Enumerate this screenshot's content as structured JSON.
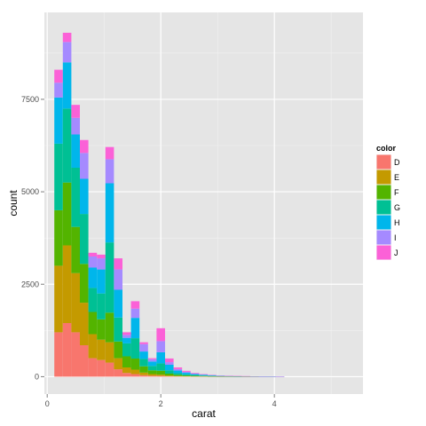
{
  "chart_data": {
    "type": "bar",
    "stacked": true,
    "x": [
      0.2,
      0.35,
      0.5,
      0.65,
      0.8,
      0.95,
      1.1,
      1.25,
      1.4,
      1.55,
      1.7,
      1.85,
      2.0,
      2.15,
      2.3,
      2.45,
      2.6,
      2.75,
      2.9,
      3.05,
      3.2,
      3.35,
      3.5,
      3.65,
      3.8,
      3.95,
      4.1,
      4.25,
      4.4,
      4.55,
      4.7,
      4.85,
      5.0
    ],
    "bin_width": 0.15,
    "series": [
      {
        "name": "D",
        "values": [
          1200,
          1450,
          1200,
          850,
          500,
          450,
          380,
          200,
          100,
          70,
          40,
          25,
          20,
          12,
          8,
          5,
          4,
          3,
          2,
          1,
          1,
          1,
          1,
          0,
          0,
          0,
          0,
          0,
          0,
          0,
          0,
          0,
          0
        ]
      },
      {
        "name": "E",
        "values": [
          1800,
          2100,
          1600,
          1150,
          650,
          550,
          550,
          300,
          150,
          120,
          70,
          45,
          35,
          20,
          12,
          8,
          6,
          5,
          3,
          2,
          2,
          1,
          1,
          0,
          0,
          0,
          0,
          0,
          0,
          0,
          0,
          0,
          0
        ]
      },
      {
        "name": "F",
        "values": [
          1500,
          1700,
          1250,
          1050,
          600,
          550,
          800,
          450,
          300,
          300,
          170,
          100,
          105,
          50,
          30,
          20,
          14,
          9,
          5,
          3,
          2,
          1,
          1,
          1,
          0,
          0,
          0,
          0,
          0,
          0,
          0,
          0,
          0
        ]
      },
      {
        "name": "G",
        "values": [
          1800,
          2000,
          1600,
          1350,
          650,
          700,
          1900,
          650,
          350,
          550,
          200,
          120,
          200,
          90,
          45,
          30,
          20,
          14,
          10,
          6,
          4,
          3,
          2,
          1,
          1,
          1,
          0,
          0,
          0,
          0,
          0,
          0,
          0
        ]
      },
      {
        "name": "H",
        "values": [
          1250,
          1250,
          900,
          950,
          550,
          650,
          1600,
          750,
          150,
          550,
          200,
          120,
          300,
          150,
          70,
          45,
          25,
          18,
          12,
          8,
          6,
          4,
          3,
          2,
          1,
          1,
          1,
          0,
          0,
          0,
          0,
          0,
          0
        ]
      },
      {
        "name": "I",
        "values": [
          400,
          550,
          450,
          700,
          300,
          300,
          650,
          550,
          80,
          250,
          200,
          60,
          300,
          70,
          40,
          25,
          18,
          12,
          10,
          8,
          6,
          5,
          4,
          3,
          2,
          3,
          1,
          0,
          0,
          0,
          0,
          0,
          0
        ]
      },
      {
        "name": "J",
        "values": [
          350,
          250,
          350,
          350,
          100,
          100,
          330,
          300,
          70,
          200,
          50,
          30,
          350,
          100,
          45,
          25,
          15,
          10,
          8,
          6,
          4,
          3,
          2,
          2,
          1,
          1,
          1,
          0,
          0,
          0,
          0,
          0,
          0
        ]
      }
    ],
    "colors": [
      "#F8766D",
      "#C49A00",
      "#53B400",
      "#00C094",
      "#00B6EB",
      "#A58AFF",
      "#FB61D7"
    ],
    "xlabel": "carat",
    "ylabel": "count",
    "xlim": [
      -0.05,
      5.56
    ],
    "ylim": [
      -470,
      9850
    ],
    "x_ticks": [
      0,
      2,
      4
    ],
    "x_tick_labels": [
      "0",
      "2",
      "4"
    ],
    "y_ticks": [
      0,
      2500,
      5000,
      7500
    ],
    "y_tick_labels": [
      "0",
      "2500",
      "5000",
      "7500"
    ],
    "x_minor_ticks": [
      1,
      3,
      5
    ],
    "y_minor_ticks": [
      1250,
      3750,
      6250,
      8750
    ],
    "grid": true,
    "panel_background": "#E5E5E5",
    "legend": {
      "title": "color",
      "position": "right",
      "labels": [
        "D",
        "E",
        "F",
        "G",
        "H",
        "I",
        "J"
      ]
    }
  }
}
